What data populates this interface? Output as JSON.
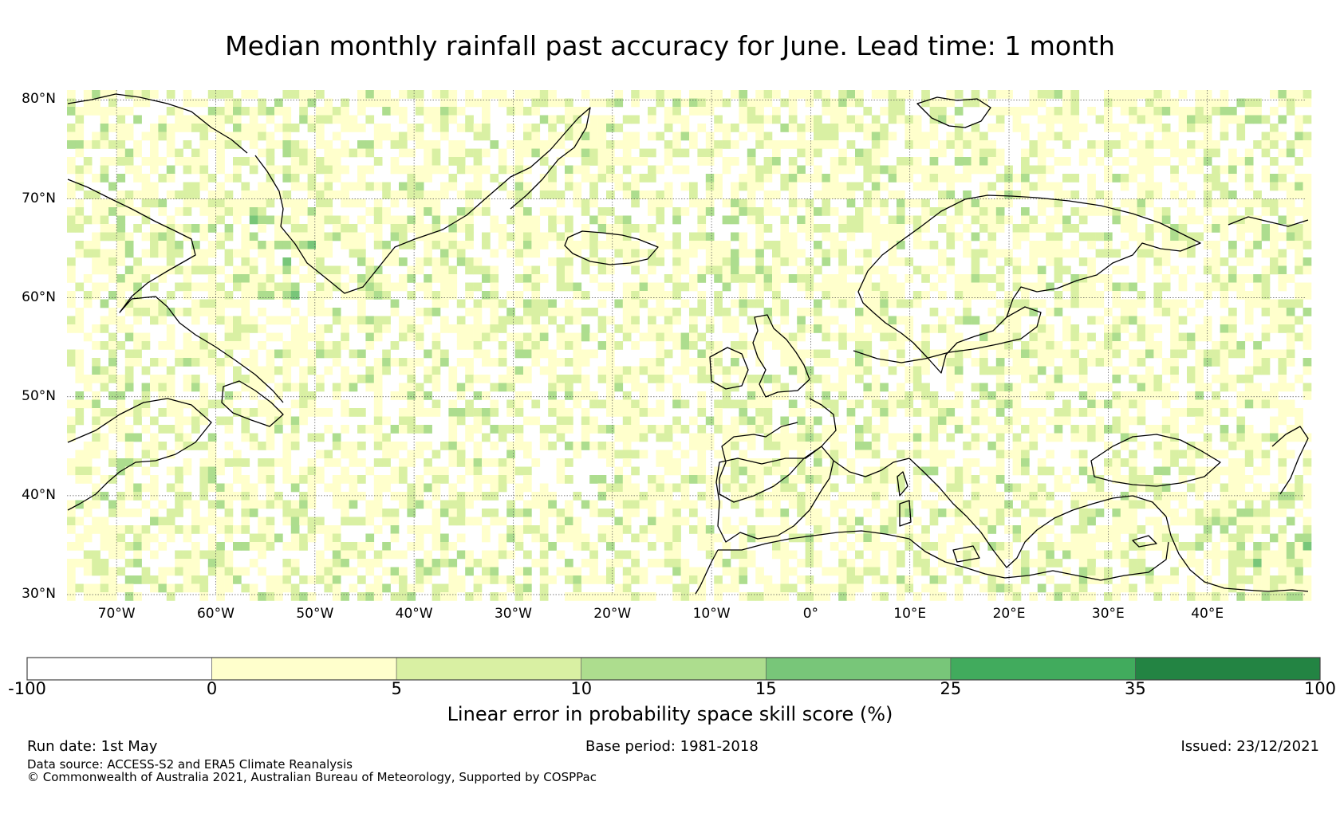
{
  "title": "Median monthly rainfall past accuracy for June. Lead time: 1 month",
  "map": {
    "lat_ticks": [
      "80°N",
      "70°N",
      "60°N",
      "50°N",
      "40°N",
      "30°N"
    ],
    "lon_ticks": [
      "70°W",
      "60°W",
      "50°W",
      "40°W",
      "30°W",
      "20°W",
      "10°W",
      "0°",
      "10°E",
      "20°E",
      "30°E",
      "40°E"
    ],
    "lat_range": [
      30,
      81
    ],
    "lon_range": [
      -75,
      50
    ],
    "coastline_color": "#000000"
  },
  "colorbar": {
    "label": "Linear error in probability space skill score (%)",
    "ticks": [
      "-100",
      "0",
      "5",
      "10",
      "15",
      "25",
      "35",
      "100"
    ],
    "colors": [
      "#ffffff",
      "#ffffcc",
      "#d9f0a3",
      "#addd8e",
      "#78c679",
      "#41ab5d",
      "#238443"
    ]
  },
  "footer": {
    "run_date": "Run date: 1st May",
    "base_period": "Base period: 1981-2018",
    "issued": "Issued: 23/12/2021",
    "data_source": "Data source: ACCESS-S2 and ERA5 Climate Reanalysis",
    "copyright": "© Commonwealth of Australia 2021, Australian Bureau of Meteorology, Supported by COSPPac"
  }
}
